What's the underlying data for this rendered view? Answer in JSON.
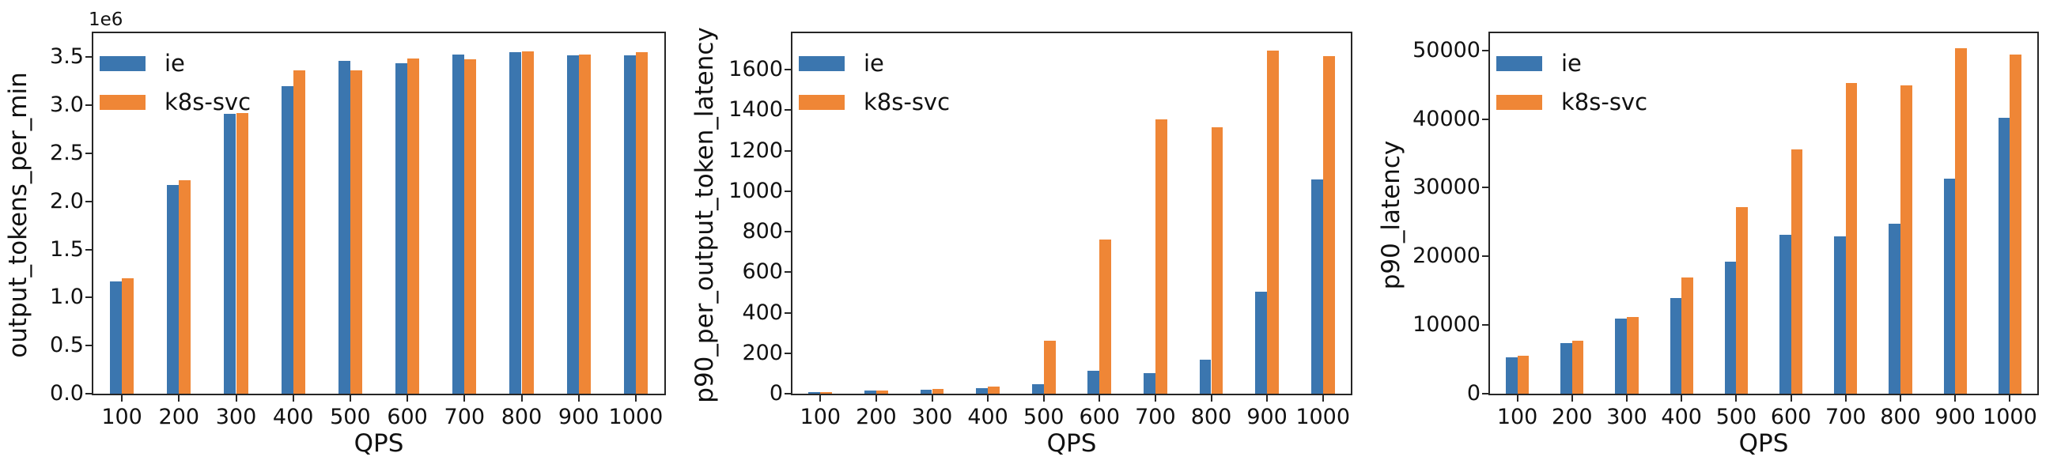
{
  "figure": {
    "background": "#ffffff",
    "spine_color": "#262626"
  },
  "legend": {
    "position": "upper-left",
    "items": [
      {
        "label": "ie",
        "color": "#3b76af"
      },
      {
        "label": "k8s-svc",
        "color": "#ef8636"
      }
    ]
  },
  "chart_data": [
    {
      "type": "bar",
      "title": "",
      "ylabel": "output_tokens_per_min",
      "xlabel": "QPS",
      "offset_text": "1e6",
      "grid": false,
      "legend_position": "upper-left",
      "categories": [
        "100",
        "200",
        "300",
        "400",
        "500",
        "600",
        "700",
        "800",
        "900",
        "1000"
      ],
      "ylim": [
        0,
        3750000
      ],
      "yticks": [
        {
          "value": 0,
          "label": "0.0"
        },
        {
          "value": 500000,
          "label": "0.5"
        },
        {
          "value": 1000000,
          "label": "1.0"
        },
        {
          "value": 1500000,
          "label": "1.5"
        },
        {
          "value": 2000000,
          "label": "2.0"
        },
        {
          "value": 2500000,
          "label": "2.5"
        },
        {
          "value": 3000000,
          "label": "3.0"
        },
        {
          "value": 3500000,
          "label": "3.5"
        }
      ],
      "series": [
        {
          "name": "ie",
          "color": "#3b76af",
          "values": [
            1170000,
            2170000,
            2910000,
            3200000,
            3460000,
            3440000,
            3530000,
            3550000,
            3520000,
            3520000
          ]
        },
        {
          "name": "k8s-svc",
          "color": "#ef8636",
          "values": [
            1200000,
            2220000,
            2920000,
            3360000,
            3360000,
            3490000,
            3480000,
            3560000,
            3530000,
            3550000
          ]
        }
      ]
    },
    {
      "type": "bar",
      "title": "",
      "ylabel": "p90_per_output_token_latency",
      "xlabel": "QPS",
      "grid": false,
      "legend_position": "upper-left",
      "categories": [
        "100",
        "200",
        "300",
        "400",
        "500",
        "600",
        "700",
        "800",
        "900",
        "1000"
      ],
      "ylim": [
        0,
        1780
      ],
      "yticks": [
        {
          "value": 0,
          "label": "0"
        },
        {
          "value": 200,
          "label": "200"
        },
        {
          "value": 400,
          "label": "400"
        },
        {
          "value": 600,
          "label": "600"
        },
        {
          "value": 800,
          "label": "800"
        },
        {
          "value": 1000,
          "label": "1000"
        },
        {
          "value": 1200,
          "label": "1200"
        },
        {
          "value": 1400,
          "label": "1400"
        },
        {
          "value": 1600,
          "label": "1600"
        }
      ],
      "series": [
        {
          "name": "ie",
          "color": "#3b76af",
          "values": [
            8,
            16,
            21,
            28,
            45,
            112,
            102,
            168,
            505,
            1058
          ]
        },
        {
          "name": "k8s-svc",
          "color": "#ef8636",
          "values": [
            8,
            15,
            22,
            34,
            262,
            760,
            1355,
            1317,
            1695,
            1668
          ]
        }
      ]
    },
    {
      "type": "bar",
      "title": "",
      "ylabel": "p90_latency",
      "xlabel": "QPS",
      "grid": false,
      "legend_position": "upper-left",
      "categories": [
        "100",
        "200",
        "300",
        "400",
        "500",
        "600",
        "700",
        "800",
        "900",
        "1000"
      ],
      "ylim": [
        0,
        52500
      ],
      "yticks": [
        {
          "value": 0,
          "label": "0"
        },
        {
          "value": 10000,
          "label": "10000"
        },
        {
          "value": 20000,
          "label": "20000"
        },
        {
          "value": 30000,
          "label": "30000"
        },
        {
          "value": 40000,
          "label": "40000"
        },
        {
          "value": 50000,
          "label": "50000"
        }
      ],
      "series": [
        {
          "name": "ie",
          "color": "#3b76af",
          "values": [
            5300,
            7400,
            10900,
            13900,
            19200,
            23100,
            22900,
            24700,
            31300,
            40200
          ]
        },
        {
          "name": "k8s-svc",
          "color": "#ef8636",
          "values": [
            5500,
            7700,
            11200,
            16900,
            27200,
            35600,
            45300,
            44900,
            50300,
            49400
          ]
        }
      ]
    }
  ]
}
